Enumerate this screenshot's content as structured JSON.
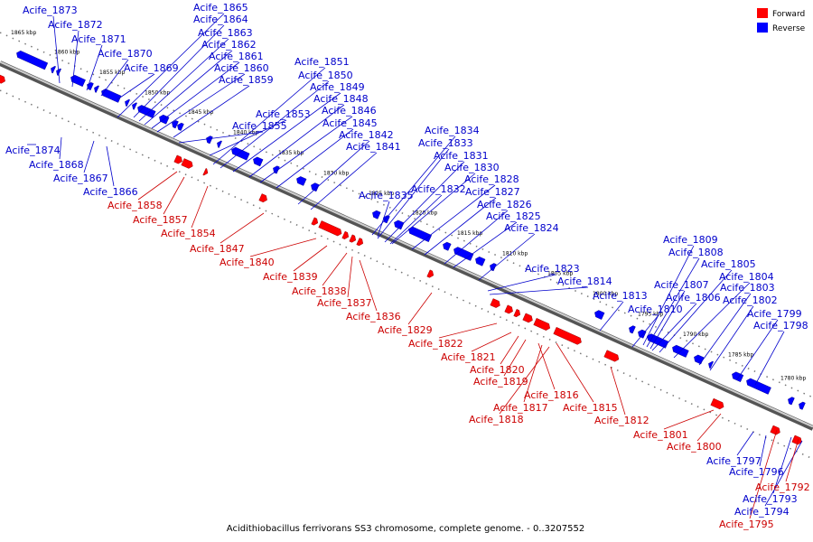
{
  "legend": {
    "forward": {
      "label": "Forward",
      "color": "#ff0000"
    },
    "reverse": {
      "label": "Reverse",
      "color": "#0000ff"
    }
  },
  "caption": "Acidithiobacillus ferrivorans SS3 chromosome, complete genome. - 0..3207552",
  "ticks": [
    "1865 kbp",
    "1860 kbp",
    "1855 kbp",
    "1850 kbp",
    "1845 kbp",
    "1840 kbp",
    "1835 kbp",
    "1830 kbp",
    "1825 kbp",
    "1820 kbp",
    "1815 kbp",
    "1810 kbp",
    "1805 kbp",
    "1800 kbp",
    "1795 kbp",
    "1790 kbp",
    "1785 kbp",
    "1780 kbp"
  ],
  "reverse_labels": [
    "Acife_1873",
    "Acife_1872",
    "Acife_1871",
    "Acife_1870",
    "Acife_1869",
    "Acife_1865",
    "Acife_1864",
    "Acife_1863",
    "Acife_1862",
    "Acife_1861",
    "Acife_1860",
    "Acife_1859",
    "Acife_1851",
    "Acife_1850",
    "Acife_1849",
    "Acife_1848",
    "Acife_1846",
    "Acife_1845",
    "Acife_1842",
    "Acife_1841",
    "Acife_1853",
    "Acife_1855",
    "Acife_1874",
    "Acife_1868",
    "Acife_1867",
    "Acife_1866",
    "Acife_1834",
    "Acife_1833",
    "Acife_1831",
    "Acife_1830",
    "Acife_1828",
    "Acife_1827",
    "Acife_1826",
    "Acife_1825",
    "Acife_1824",
    "Acife_1832",
    "Acife_1835",
    "Acife_1823",
    "Acife_1814",
    "Acife_1813",
    "Acife_1810",
    "Acife_1809",
    "Acife_1808",
    "Acife_1805",
    "Acife_1807",
    "Acife_1806",
    "Acife_1804",
    "Acife_1803",
    "Acife_1802",
    "Acife_1799",
    "Acife_1798",
    "Acife_1797",
    "Acife_1796",
    "Acife_1793",
    "Acife_1794"
  ],
  "forward_labels": [
    "Acife_1858",
    "Acife_1857",
    "Acife_1854",
    "Acife_1847",
    "Acife_1840",
    "Acife_1839",
    "Acife_1838",
    "Acife_1837",
    "Acife_1836",
    "Acife_1829",
    "Acife_1822",
    "Acife_1821",
    "Acife_1820",
    "Acife_1819",
    "Acife_1816",
    "Acife_1817",
    "Acife_1818",
    "Acife_1815",
    "Acife_1812",
    "Acife_1801",
    "Acife_1800",
    "Acife_1792",
    "Acife_1795"
  ]
}
